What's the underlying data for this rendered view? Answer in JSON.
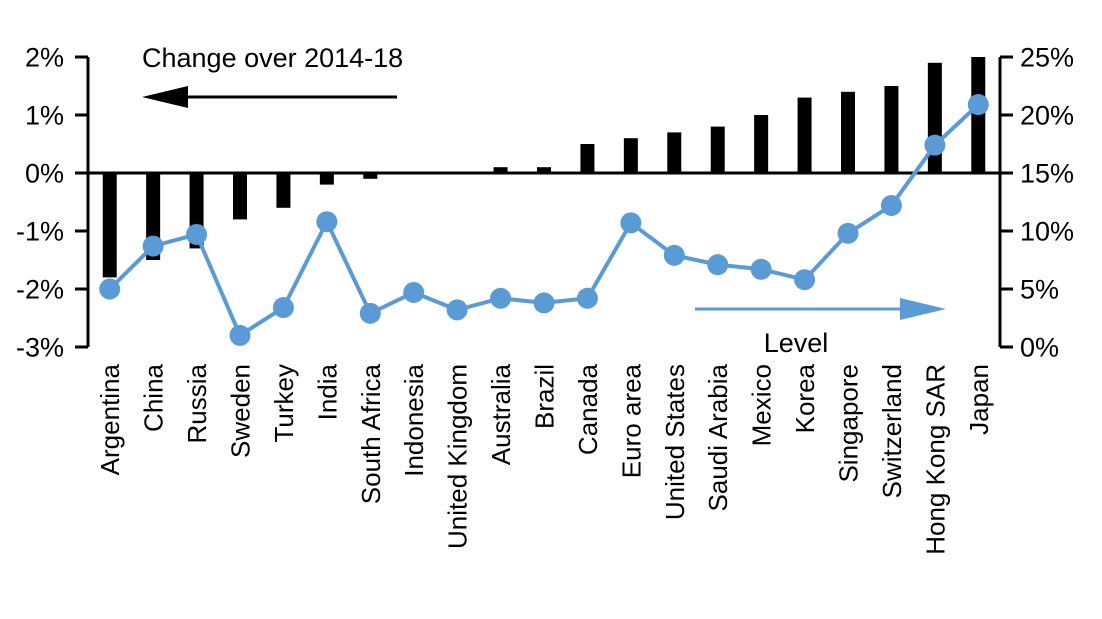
{
  "chart_data": {
    "type": "bar",
    "subtype": "dual-axis bar + line combo",
    "title": "",
    "categories": [
      "Argentina",
      "China",
      "Russia",
      "Sweden",
      "Turkey",
      "India",
      "South Africa",
      "Indonesia",
      "United Kingdom",
      "Australia",
      "Brazil",
      "Canada",
      "Euro area",
      "United States",
      "Saudi Arabia",
      "Mexico",
      "Korea",
      "Singapore",
      "Switzerland",
      "Hong Kong SAR",
      "Japan"
    ],
    "series": [
      {
        "name": "Change over 2014-18",
        "type": "bar",
        "axis": "left",
        "color": "#000000",
        "values": [
          -1.8,
          -1.5,
          -1.3,
          -0.8,
          -0.6,
          -0.2,
          -0.1,
          0.0,
          0.0,
          0.1,
          0.1,
          0.5,
          0.6,
          0.7,
          0.8,
          1.0,
          1.3,
          1.4,
          1.5,
          1.9,
          2.0
        ]
      },
      {
        "name": "Level",
        "type": "line",
        "axis": "right",
        "color": "#5B9BD5",
        "values": [
          5.0,
          8.7,
          9.7,
          1.0,
          3.4,
          10.8,
          2.9,
          4.7,
          3.2,
          4.2,
          3.8,
          4.2,
          10.7,
          7.9,
          7.1,
          6.7,
          5.8,
          9.8,
          12.2,
          17.4,
          20.9
        ]
      }
    ],
    "left_axis": {
      "tick_labels": [
        "2%",
        "1%",
        "0%",
        "-1%",
        "-2%",
        "-3%"
      ],
      "tick_values": [
        2,
        1,
        0,
        -1,
        -2,
        -3
      ],
      "min": -3,
      "max": 2,
      "unit": "%"
    },
    "right_axis": {
      "tick_labels": [
        "25%",
        "20%",
        "15%",
        "10%",
        "5%",
        "0%"
      ],
      "tick_values": [
        25,
        20,
        15,
        10,
        5,
        0
      ],
      "min": 0,
      "max": 25,
      "unit": "%"
    },
    "annotations": {
      "change": {
        "label": "Change over 2014-18",
        "arrow_direction": "left",
        "color": "#000000"
      },
      "level": {
        "label": "Level",
        "arrow_direction": "right",
        "color": "#5B9BD5"
      }
    },
    "grid": false,
    "legend_position": "in-plot arrow annotations (no legend box)",
    "background": "#FFFFFF"
  }
}
